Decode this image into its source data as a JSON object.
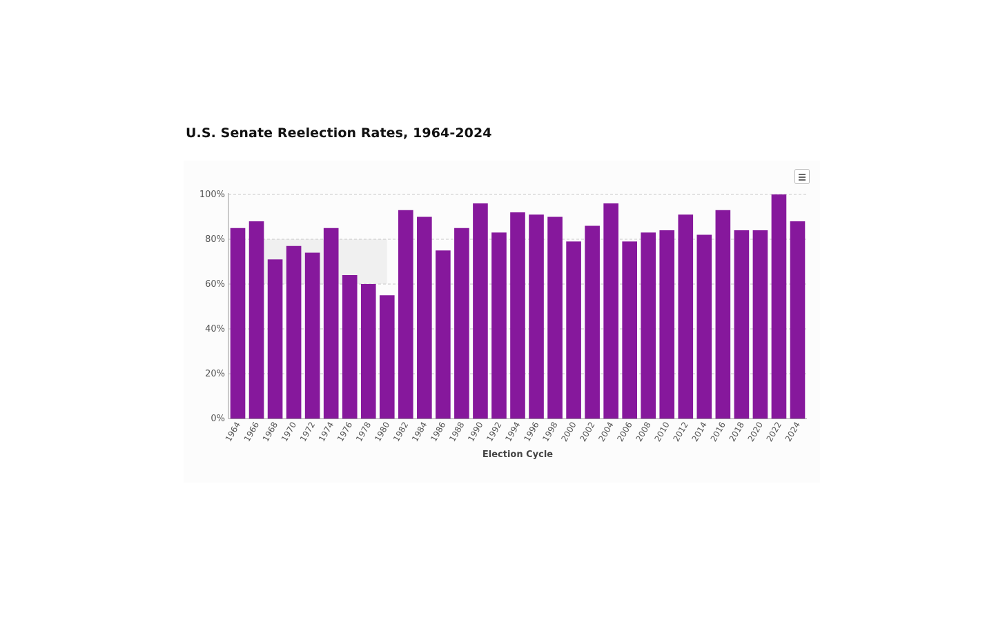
{
  "title": "U.S. Senate Reelection Rates, 1964-2024",
  "chart_data": {
    "type": "bar",
    "title": "U.S. Senate Reelection Rates, 1964-2024",
    "xlabel": "Election Cycle",
    "ylabel": "",
    "ylim": [
      0,
      100
    ],
    "yticks": [
      "0%",
      "20%",
      "40%",
      "60%",
      "80%",
      "100%"
    ],
    "grid": true,
    "categories": [
      "1964",
      "1966",
      "1968",
      "1970",
      "1972",
      "1974",
      "1976",
      "1978",
      "1980",
      "1982",
      "1984",
      "1986",
      "1988",
      "1990",
      "1992",
      "1994",
      "1996",
      "1998",
      "2000",
      "2002",
      "2004",
      "2006",
      "2008",
      "2010",
      "2012",
      "2014",
      "2016",
      "2018",
      "2020",
      "2022",
      "2024"
    ],
    "values": [
      85,
      88,
      71,
      77,
      74,
      85,
      64,
      60,
      55,
      93,
      90,
      75,
      85,
      96,
      83,
      92,
      91,
      90,
      79,
      86,
      96,
      79,
      83,
      84,
      91,
      82,
      93,
      84,
      84,
      100,
      88
    ],
    "highlight_band": {
      "from_category": "1966",
      "to_category": "1980",
      "y_from": 60,
      "y_to": 80
    },
    "colors": {
      "bar": "#86189c",
      "grid": "#c8c8c8",
      "band": "#f0f0f0"
    }
  },
  "toolbar": {
    "menu_icon": "hamburger-menu-icon"
  }
}
